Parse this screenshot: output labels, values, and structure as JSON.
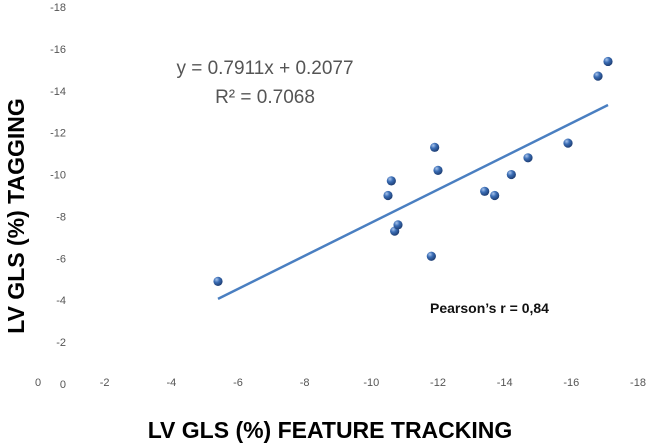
{
  "chart_data": {
    "type": "scatter",
    "xlabel": "LV GLS (%) FEATURE TRACKING",
    "ylabel": "LV GLS (%) TAGGING",
    "xlim": [
      0,
      -18
    ],
    "ylim": [
      0,
      -18
    ],
    "x_ticks": [
      "0",
      "-2",
      "-4",
      "-6",
      "-8",
      "-10",
      "-12",
      "-14",
      "-16",
      "-18"
    ],
    "y_ticks": [
      "0",
      "-2",
      "-4",
      "-6",
      "-8",
      "-10",
      "-12",
      "-14",
      "-16",
      "-18"
    ],
    "series": [
      {
        "x": [
          -5.4,
          -10.5,
          -10.6,
          -10.7,
          -10.8,
          -11.8,
          -11.9,
          -12.0,
          -13.4,
          -13.7,
          -14.2,
          -14.7,
          -15.9,
          -16.8,
          -17.1
        ],
        "y": [
          -4.9,
          -9.0,
          -9.7,
          -7.3,
          -7.6,
          -6.1,
          -11.3,
          -10.2,
          -9.2,
          -9.0,
          -10.0,
          -10.8,
          -11.5,
          -14.7,
          -15.4
        ],
        "color": "#3a6db5"
      }
    ],
    "trendline": {
      "equation": "y = 0.7911x + 0.2077",
      "r_squared": "R² = 0.7068",
      "slope": 0.7911,
      "intercept": 0.2077,
      "x_range": [
        -5.4,
        -17.1
      ],
      "color": "#4a7fc1"
    },
    "annotation": "Pearson’s r = 0,84",
    "grid": false
  }
}
